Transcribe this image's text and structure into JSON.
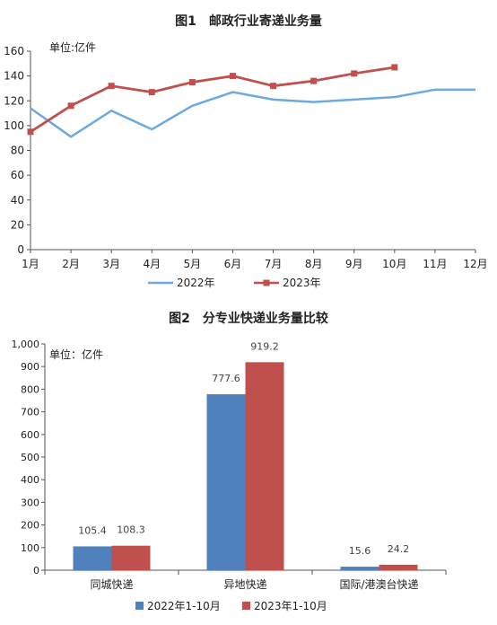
{
  "chart_data": [
    {
      "type": "line",
      "title": "图1　邮政行业寄递业务量",
      "unit": "单位:亿件",
      "categories": [
        "1月",
        "2月",
        "3月",
        "4月",
        "5月",
        "6月",
        "7月",
        "8月",
        "9月",
        "10月",
        "11月",
        "12月"
      ],
      "ylim": [
        0,
        160
      ],
      "yticks": [
        0,
        20,
        40,
        60,
        80,
        100,
        120,
        140,
        160
      ],
      "grid": false,
      "legend": "bottom",
      "series": [
        {
          "name": "2022年",
          "color": "#6fa8dc",
          "marker": "none",
          "values": [
            114,
            91,
            112,
            97,
            116,
            127,
            121,
            119,
            121,
            123,
            129,
            129
          ]
        },
        {
          "name": "2023年",
          "color": "#c0504d",
          "marker": "square",
          "values": [
            95,
            116,
            132,
            127,
            135,
            140,
            132,
            136,
            142,
            147,
            null,
            null
          ]
        }
      ]
    },
    {
      "type": "bar",
      "title": "图2　分专业快递业务量比较",
      "unit": "单位：亿件",
      "categories": [
        "同城快递",
        "异地快递",
        "国际/港澳台快递"
      ],
      "ylim": [
        0,
        1000
      ],
      "yticks": [
        0,
        100,
        200,
        300,
        400,
        500,
        600,
        700,
        800,
        900,
        1000
      ],
      "ytick_labels": [
        "0",
        "100",
        "200",
        "300",
        "400",
        "500",
        "600",
        "700",
        "800",
        "900",
        "1,000"
      ],
      "grid": false,
      "legend": "bottom",
      "series": [
        {
          "name": "2022年1-10月",
          "color": "#4f81bd",
          "values": [
            105.4,
            777.6,
            15.6
          ],
          "labels": [
            "105.4",
            "777.6",
            "15.6"
          ]
        },
        {
          "name": "2023年1-10月",
          "color": "#c0504d",
          "values": [
            108.3,
            919.2,
            24.2
          ],
          "labels": [
            "108.3",
            "919.2",
            "24.2"
          ]
        }
      ]
    }
  ]
}
